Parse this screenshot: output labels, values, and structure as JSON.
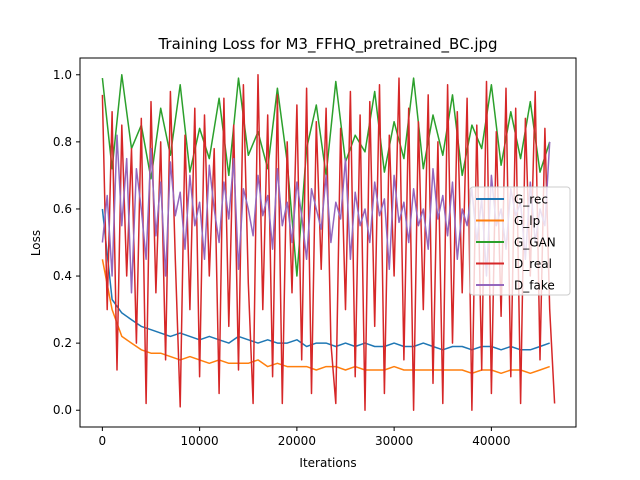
{
  "chart_data": {
    "type": "line",
    "title": "Training Loss for M3_FFHQ_pretrained_BC.jpg",
    "xlabel": "Iterations",
    "ylabel": "Loss",
    "xlim": [
      -2300,
      48700
    ],
    "ylim": [
      -0.05,
      1.05
    ],
    "xticks": [
      0,
      10000,
      20000,
      30000,
      40000
    ],
    "yticks": [
      0.0,
      0.2,
      0.4,
      0.6,
      0.8,
      1.0
    ],
    "legend_position": "center-right",
    "series": [
      {
        "name": "G_rec",
        "color": "#1f77b4",
        "x": [
          0,
          1000,
          2000,
          3000,
          4000,
          5000,
          6000,
          7000,
          8000,
          9000,
          10000,
          11000,
          12000,
          13000,
          14000,
          15000,
          16000,
          17000,
          18000,
          19000,
          20000,
          21000,
          22000,
          23000,
          24000,
          25000,
          26000,
          27000,
          28000,
          29000,
          30000,
          31000,
          32000,
          33000,
          34000,
          35000,
          36000,
          37000,
          38000,
          39000,
          40000,
          41000,
          42000,
          43000,
          44000,
          45000,
          46000
        ],
        "y": [
          0.6,
          0.33,
          0.29,
          0.27,
          0.25,
          0.24,
          0.23,
          0.22,
          0.23,
          0.22,
          0.21,
          0.22,
          0.21,
          0.2,
          0.22,
          0.21,
          0.2,
          0.21,
          0.2,
          0.2,
          0.21,
          0.19,
          0.2,
          0.2,
          0.19,
          0.2,
          0.19,
          0.2,
          0.19,
          0.19,
          0.2,
          0.19,
          0.19,
          0.2,
          0.19,
          0.18,
          0.19,
          0.19,
          0.18,
          0.19,
          0.19,
          0.18,
          0.19,
          0.18,
          0.18,
          0.19,
          0.2
        ]
      },
      {
        "name": "G_lp",
        "color": "#ff7f0e",
        "x": [
          0,
          1000,
          2000,
          3000,
          4000,
          5000,
          6000,
          7000,
          8000,
          9000,
          10000,
          11000,
          12000,
          13000,
          14000,
          15000,
          16000,
          17000,
          18000,
          19000,
          20000,
          21000,
          22000,
          23000,
          24000,
          25000,
          26000,
          27000,
          28000,
          29000,
          30000,
          31000,
          32000,
          33000,
          34000,
          35000,
          36000,
          37000,
          38000,
          39000,
          40000,
          41000,
          42000,
          43000,
          44000,
          45000,
          46000
        ],
        "y": [
          0.45,
          0.3,
          0.22,
          0.2,
          0.18,
          0.17,
          0.17,
          0.16,
          0.15,
          0.16,
          0.15,
          0.14,
          0.15,
          0.14,
          0.14,
          0.14,
          0.15,
          0.13,
          0.14,
          0.13,
          0.13,
          0.13,
          0.12,
          0.13,
          0.13,
          0.12,
          0.13,
          0.12,
          0.12,
          0.12,
          0.13,
          0.12,
          0.12,
          0.12,
          0.12,
          0.12,
          0.12,
          0.12,
          0.11,
          0.12,
          0.12,
          0.11,
          0.12,
          0.12,
          0.11,
          0.12,
          0.13
        ]
      },
      {
        "name": "G_GAN",
        "color": "#2ca02c",
        "x": [
          0,
          1000,
          2000,
          3000,
          4000,
          5000,
          6000,
          7000,
          8000,
          9000,
          10000,
          11000,
          12000,
          13000,
          14000,
          15000,
          16000,
          17000,
          18000,
          19000,
          20000,
          21000,
          22000,
          23000,
          24000,
          25000,
          26000,
          27000,
          28000,
          29000,
          30000,
          31000,
          32000,
          33000,
          34000,
          35000,
          36000,
          37000,
          38000,
          39000,
          40000,
          41000,
          42000,
          43000,
          44000,
          45000,
          46000
        ],
        "y": [
          0.99,
          0.72,
          1.0,
          0.78,
          0.85,
          0.69,
          0.9,
          0.76,
          0.97,
          0.71,
          0.84,
          0.75,
          0.93,
          0.7,
          0.99,
          0.76,
          0.83,
          0.72,
          0.96,
          0.74,
          0.4,
          0.78,
          0.91,
          0.7,
          0.98,
          0.74,
          0.82,
          0.77,
          0.95,
          0.71,
          0.86,
          0.75,
          0.99,
          0.72,
          0.88,
          0.76,
          0.94,
          0.7,
          0.85,
          0.78,
          0.97,
          0.73,
          0.89,
          0.75,
          0.92,
          0.71,
          0.8
        ]
      },
      {
        "name": "D_real",
        "color": "#d62728",
        "x": [
          0,
          500,
          1000,
          1500,
          2000,
          2500,
          3000,
          3500,
          4000,
          4500,
          5000,
          5500,
          6000,
          6500,
          7000,
          7500,
          8000,
          8500,
          9000,
          9500,
          10000,
          10500,
          11000,
          11500,
          12000,
          12500,
          13000,
          13500,
          14000,
          14500,
          15000,
          15500,
          16000,
          16500,
          17000,
          17500,
          18000,
          18500,
          19000,
          19500,
          20000,
          20500,
          21000,
          21500,
          22000,
          22500,
          23000,
          23500,
          24000,
          24500,
          25000,
          25500,
          26000,
          26500,
          27000,
          27500,
          28000,
          28500,
          29000,
          29500,
          30000,
          30500,
          31000,
          31500,
          32000,
          32500,
          33000,
          33500,
          34000,
          34500,
          35000,
          35500,
          36000,
          36500,
          37000,
          37500,
          38000,
          38500,
          39000,
          39500,
          40000,
          40500,
          41000,
          41500,
          42000,
          42500,
          43000,
          43500,
          44000,
          44500,
          45000,
          45500,
          46000,
          46500
        ],
        "y": [
          0.94,
          0.3,
          0.89,
          0.12,
          0.85,
          0.4,
          0.78,
          0.2,
          0.87,
          0.02,
          0.92,
          0.35,
          0.8,
          0.15,
          0.95,
          0.45,
          0.01,
          0.82,
          0.3,
          0.9,
          0.1,
          0.88,
          0.4,
          0.78,
          0.05,
          0.93,
          0.25,
          0.85,
          0.12,
          0.97,
          0.38,
          0.02,
          1.0,
          0.3,
          0.88,
          0.1,
          0.94,
          0.02,
          0.8,
          0.35,
          0.91,
          0.15,
          0.96,
          0.05,
          0.86,
          0.42,
          0.9,
          0.2,
          0.02,
          0.84,
          0.3,
          0.95,
          0.1,
          0.88,
          0.0,
          0.92,
          0.25,
          0.97,
          0.05,
          0.82,
          0.4,
          0.99,
          0.15,
          0.9,
          0.0,
          0.86,
          0.3,
          0.94,
          0.08,
          0.8,
          0.02,
          0.97,
          0.2,
          0.89,
          0.35,
          0.93,
          0.0,
          0.85,
          0.12,
          0.98,
          0.05,
          0.83,
          0.28,
          0.96,
          0.1,
          0.9,
          0.02,
          0.87,
          0.4,
          0.95,
          0.15,
          0.84,
          0.3,
          0.02
        ]
      },
      {
        "name": "D_fake",
        "color": "#9467bd",
        "x": [
          0,
          500,
          1000,
          1500,
          2000,
          2500,
          3000,
          3500,
          4000,
          4500,
          5000,
          5500,
          6000,
          6500,
          7000,
          7500,
          8000,
          8500,
          9000,
          9500,
          10000,
          10500,
          11000,
          11500,
          12000,
          12500,
          13000,
          13500,
          14000,
          14500,
          15000,
          15500,
          16000,
          16500,
          17000,
          17500,
          18000,
          18500,
          19000,
          19500,
          20000,
          20500,
          21000,
          21500,
          22000,
          22500,
          23000,
          23500,
          24000,
          24500,
          25000,
          25500,
          26000,
          26500,
          27000,
          27500,
          28000,
          28500,
          29000,
          29500,
          30000,
          30500,
          31000,
          31500,
          32000,
          32500,
          33000,
          33500,
          34000,
          34500,
          35000,
          35500,
          36000,
          36500,
          37000,
          37500,
          38000,
          38500,
          39000,
          39500,
          40000,
          40500,
          41000,
          41500,
          42000,
          42500,
          43000,
          43500,
          44000,
          44500,
          45000,
          45500,
          46000
        ],
        "y": [
          0.5,
          0.64,
          0.4,
          0.82,
          0.55,
          0.75,
          0.35,
          0.72,
          0.6,
          0.45,
          0.78,
          0.52,
          0.68,
          0.4,
          0.74,
          0.58,
          0.65,
          0.48,
          0.7,
          0.55,
          0.62,
          0.45,
          0.73,
          0.6,
          0.5,
          0.68,
          0.57,
          0.75,
          0.42,
          0.66,
          0.6,
          0.52,
          0.7,
          0.58,
          0.64,
          0.48,
          0.72,
          0.55,
          0.62,
          0.5,
          0.68,
          0.58,
          0.45,
          0.66,
          0.6,
          0.54,
          0.7,
          0.5,
          0.62,
          0.57,
          0.75,
          0.45,
          0.65,
          0.55,
          0.6,
          0.5,
          0.68,
          0.58,
          0.63,
          0.42,
          0.7,
          0.56,
          0.62,
          0.5,
          0.66,
          0.55,
          0.6,
          0.48,
          0.72,
          0.57,
          0.64,
          0.52,
          0.68,
          0.45,
          0.6,
          0.55,
          0.66,
          0.5,
          0.63,
          0.4,
          0.7,
          0.55,
          0.6,
          0.48,
          0.66,
          0.58,
          0.62,
          0.45,
          0.68,
          0.5,
          0.6,
          0.55,
          0.8
        ]
      }
    ]
  }
}
